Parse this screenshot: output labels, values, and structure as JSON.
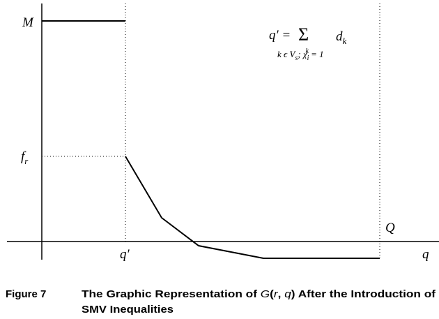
{
  "axes": {
    "y_top_label": "M",
    "f_label": "f",
    "f_sub": "r",
    "x_tick_label": "q′",
    "x_end_label": "Q",
    "x_axis_label": "q"
  },
  "formula": {
    "lhs": "q′ =",
    "sum": "Σ",
    "term": "d",
    "term_sub": "k",
    "index": "k ϵ V",
    "index_sub_s": "s",
    "index_rest": "; χ",
    "chi_sub": "i",
    "chi_sup": "k",
    "index_end": " = 1"
  },
  "caption": {
    "label": "Figure 7",
    "line1": [
      "The Graphic Representation of ",
      "G",
      "(",
      "r",
      ", ",
      "q",
      ")",
      " After the Introduction of"
    ],
    "line2": "SMV Inequalities"
  }
}
